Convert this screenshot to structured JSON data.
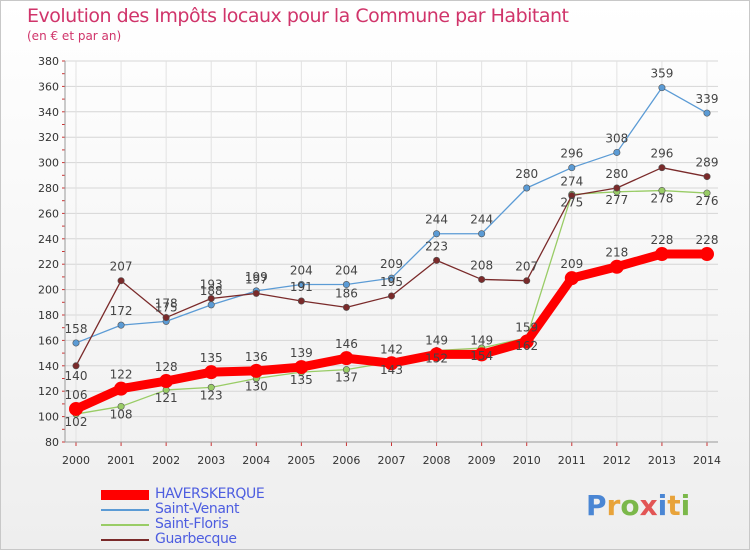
{
  "chart_data": {
    "type": "line",
    "title": "Evolution des Impôts locaux pour la Commune par Habitant",
    "subtitle": "(en € et par an)",
    "x": [
      "2000",
      "2001",
      "2002",
      "2003",
      "2004",
      "2005",
      "2006",
      "2007",
      "2008",
      "2009",
      "2010",
      "2011",
      "2012",
      "2013",
      "2014"
    ],
    "ylim": [
      80,
      380
    ],
    "yticks": [
      80,
      100,
      120,
      140,
      160,
      180,
      200,
      220,
      240,
      260,
      280,
      300,
      320,
      340,
      360,
      380
    ],
    "grid": true,
    "series": [
      {
        "name": "HAVERSKERQUE",
        "color": "#ff0000",
        "values": [
          106,
          122,
          128,
          135,
          136,
          139,
          146,
          142,
          149,
          149,
          159,
          209,
          218,
          228,
          228
        ]
      },
      {
        "name": "Saint-Venant",
        "color": "#5b9bd5",
        "values": [
          158,
          172,
          175,
          188,
          199,
          204,
          204,
          209,
          244,
          244,
          280,
          296,
          308,
          359,
          339
        ]
      },
      {
        "name": "Saint-Floris",
        "color": "#99cc66",
        "values": [
          102,
          108,
          121,
          123,
          130,
          135,
          137,
          143,
          152,
          154,
          162,
          275,
          277,
          278,
          276
        ]
      },
      {
        "name": "Guarbecque",
        "color": "#7a2a2a",
        "values": [
          140,
          207,
          178,
          193,
          197,
          191,
          186,
          195,
          223,
          208,
          207,
          274,
          280,
          296,
          289
        ]
      }
    ]
  },
  "logo": {
    "letters": [
      "P",
      "r",
      "o",
      "x",
      "i",
      "t",
      "i"
    ],
    "colors": [
      "#4a86d4",
      "#e8a33a",
      "#7bb84a",
      "#e25555",
      "#4a86d4",
      "#e8a33a",
      "#7bb84a"
    ]
  }
}
